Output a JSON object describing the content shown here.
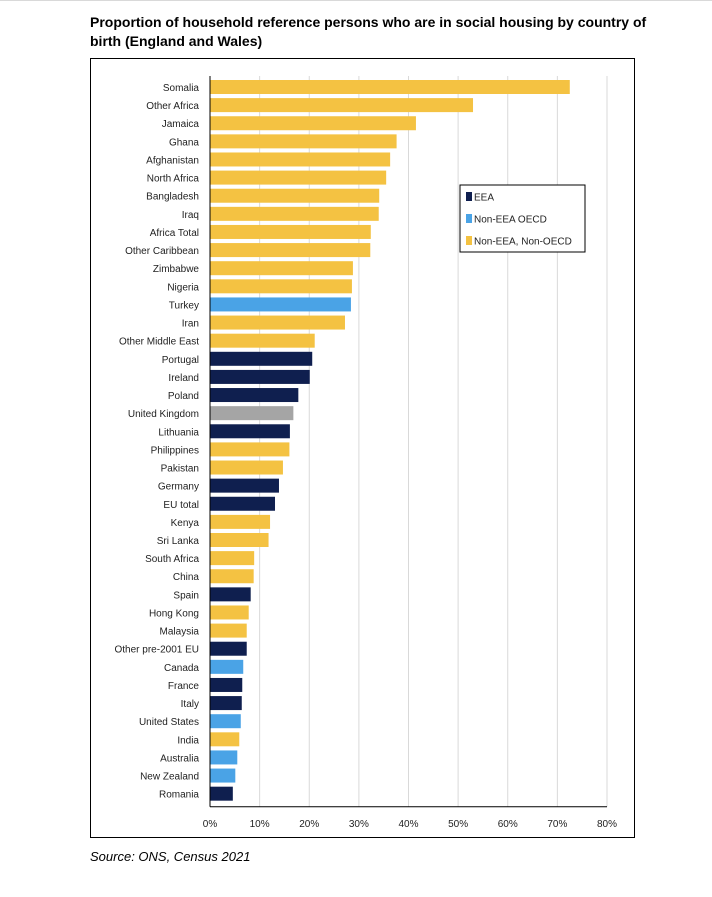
{
  "title": "Proportion of household reference persons who are in social housing by country of birth (England and Wales)",
  "source": "Source: ONS, Census 2021",
  "colors": {
    "EEA": "#0f1f4f",
    "Non-EEA OECD": "#4aa3e6",
    "Non-EEA, Non-OECD": "#f4c242",
    "UK": "#a5a5a5",
    "grid": "#d9d9d9"
  },
  "chart_data": {
    "type": "bar",
    "orientation": "horizontal",
    "title": "Proportion of household reference persons who are in social housing by country of birth (England and Wales)",
    "xlim": [
      0,
      80
    ],
    "xticks": [
      "0%",
      "10%",
      "20%",
      "30%",
      "40%",
      "50%",
      "60%",
      "70%",
      "80%"
    ],
    "legend": {
      "position": "right",
      "entries": [
        "EEA",
        "Non-EEA OECD",
        "Non-EEA, Non-OECD"
      ]
    },
    "categories": [
      "Somalia",
      "Other Africa",
      "Jamaica",
      "Ghana",
      "Afghanistan",
      "North Africa",
      "Bangladesh",
      "Iraq",
      "Africa Total",
      "Other Caribbean",
      "Zimbabwe",
      "Nigeria",
      "Turkey",
      "Iran",
      "Other Middle East",
      "Portugal",
      "Ireland",
      "Poland",
      "United Kingdom",
      "Lithuania",
      "Philippines",
      "Pakistan",
      "Germany",
      "EU total",
      "Kenya",
      "Sri Lanka",
      "South Africa",
      "China",
      "Spain",
      "Hong Kong",
      "Malaysia",
      "Other pre-2001 EU",
      "Canada",
      "France",
      "Italy",
      "United States",
      "India",
      "Australia",
      "New Zealand",
      "Romania"
    ],
    "values": [
      72.5,
      53,
      41.5,
      37.6,
      36.3,
      35.5,
      34.1,
      34,
      32.4,
      32.3,
      28.8,
      28.6,
      28.4,
      27.2,
      21.1,
      20.6,
      20.1,
      17.8,
      16.8,
      16.1,
      16,
      14.7,
      13.9,
      13.1,
      12.1,
      11.8,
      8.9,
      8.8,
      8.2,
      7.8,
      7.4,
      7.4,
      6.7,
      6.5,
      6.4,
      6.2,
      5.9,
      5.5,
      5.1,
      4.6
    ],
    "groups": [
      "Non-EEA, Non-OECD",
      "Non-EEA, Non-OECD",
      "Non-EEA, Non-OECD",
      "Non-EEA, Non-OECD",
      "Non-EEA, Non-OECD",
      "Non-EEA, Non-OECD",
      "Non-EEA, Non-OECD",
      "Non-EEA, Non-OECD",
      "Non-EEA, Non-OECD",
      "Non-EEA, Non-OECD",
      "Non-EEA, Non-OECD",
      "Non-EEA, Non-OECD",
      "Non-EEA OECD",
      "Non-EEA, Non-OECD",
      "Non-EEA, Non-OECD",
      "EEA",
      "EEA",
      "EEA",
      "UK",
      "EEA",
      "Non-EEA, Non-OECD",
      "Non-EEA, Non-OECD",
      "EEA",
      "EEA",
      "Non-EEA, Non-OECD",
      "Non-EEA, Non-OECD",
      "Non-EEA, Non-OECD",
      "Non-EEA, Non-OECD",
      "EEA",
      "Non-EEA, Non-OECD",
      "Non-EEA, Non-OECD",
      "EEA",
      "Non-EEA OECD",
      "EEA",
      "EEA",
      "Non-EEA OECD",
      "Non-EEA, Non-OECD",
      "Non-EEA OECD",
      "Non-EEA OECD",
      "EEA"
    ]
  }
}
